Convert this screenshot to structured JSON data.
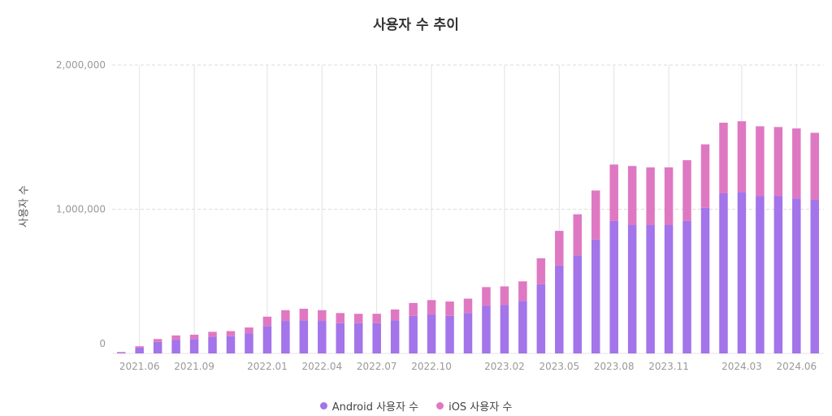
{
  "chart_data": {
    "type": "bar",
    "stacked": true,
    "title": "사용자 수 추이",
    "xlabel": "",
    "ylabel": "사용자 수",
    "ylim": [
      0,
      2000000
    ],
    "y_ticks": [
      {
        "value": 0,
        "label": "0"
      },
      {
        "value": 1000000,
        "label": "1,000,000"
      },
      {
        "value": 2000000,
        "label": "2,000,000"
      }
    ],
    "x_tick_labels": [
      {
        "index": 1,
        "label": "2021.06"
      },
      {
        "index": 4,
        "label": "2021.09"
      },
      {
        "index": 8,
        "label": "2022.01"
      },
      {
        "index": 11,
        "label": "2022.04"
      },
      {
        "index": 14,
        "label": "2022.07"
      },
      {
        "index": 17,
        "label": "2022.10"
      },
      {
        "index": 21,
        "label": "2023.02"
      },
      {
        "index": 24,
        "label": "2023.05"
      },
      {
        "index": 27,
        "label": "2023.08"
      },
      {
        "index": 30,
        "label": "2023.11"
      },
      {
        "index": 34,
        "label": "2024.03"
      },
      {
        "index": 37,
        "label": "2024.06"
      }
    ],
    "categories": [
      "2021.05",
      "2021.06",
      "2021.07",
      "2021.08",
      "2021.09",
      "2021.10",
      "2021.11",
      "2021.12",
      "2022.01",
      "2022.02",
      "2022.03",
      "2022.04",
      "2022.05",
      "2022.06",
      "2022.07",
      "2022.08",
      "2022.09",
      "2022.10",
      "2022.11",
      "2022.12",
      "2023.01",
      "2023.02",
      "2023.03",
      "2023.04",
      "2023.05",
      "2023.06",
      "2023.07",
      "2023.08",
      "2023.09",
      "2023.10",
      "2023.11",
      "2023.12",
      "2024.01",
      "2024.02",
      "2024.03",
      "2024.04",
      "2024.05",
      "2024.06",
      "2024.07"
    ],
    "series": [
      {
        "name": "Android 사용자 수",
        "color": "#a374ea",
        "values": [
          5000,
          40000,
          80000,
          95000,
          100000,
          115000,
          120000,
          140000,
          190000,
          225000,
          230000,
          225000,
          210000,
          210000,
          210000,
          230000,
          260000,
          270000,
          260000,
          280000,
          330000,
          335000,
          365000,
          480000,
          610000,
          680000,
          790000,
          920000,
          890000,
          890000,
          890000,
          920000,
          1010000,
          1110000,
          1120000,
          1090000,
          1090000,
          1075000,
          1065000
        ]
      },
      {
        "name": "iOS 사용자 수",
        "color": "#df78c2",
        "values": [
          5000,
          10000,
          20000,
          30000,
          30000,
          35000,
          35000,
          40000,
          65000,
          75000,
          80000,
          75000,
          70000,
          65000,
          65000,
          75000,
          90000,
          100000,
          100000,
          100000,
          130000,
          130000,
          135000,
          180000,
          240000,
          285000,
          340000,
          390000,
          410000,
          400000,
          400000,
          420000,
          440000,
          490000,
          490000,
          485000,
          480000,
          485000,
          465000
        ]
      }
    ],
    "legend": "bottom-center",
    "grid": true
  },
  "legend_items": [
    {
      "label": "Android 사용자 수",
      "color": "#a374ea"
    },
    {
      "label": "iOS 사용자 수",
      "color": "#df78c2"
    }
  ]
}
